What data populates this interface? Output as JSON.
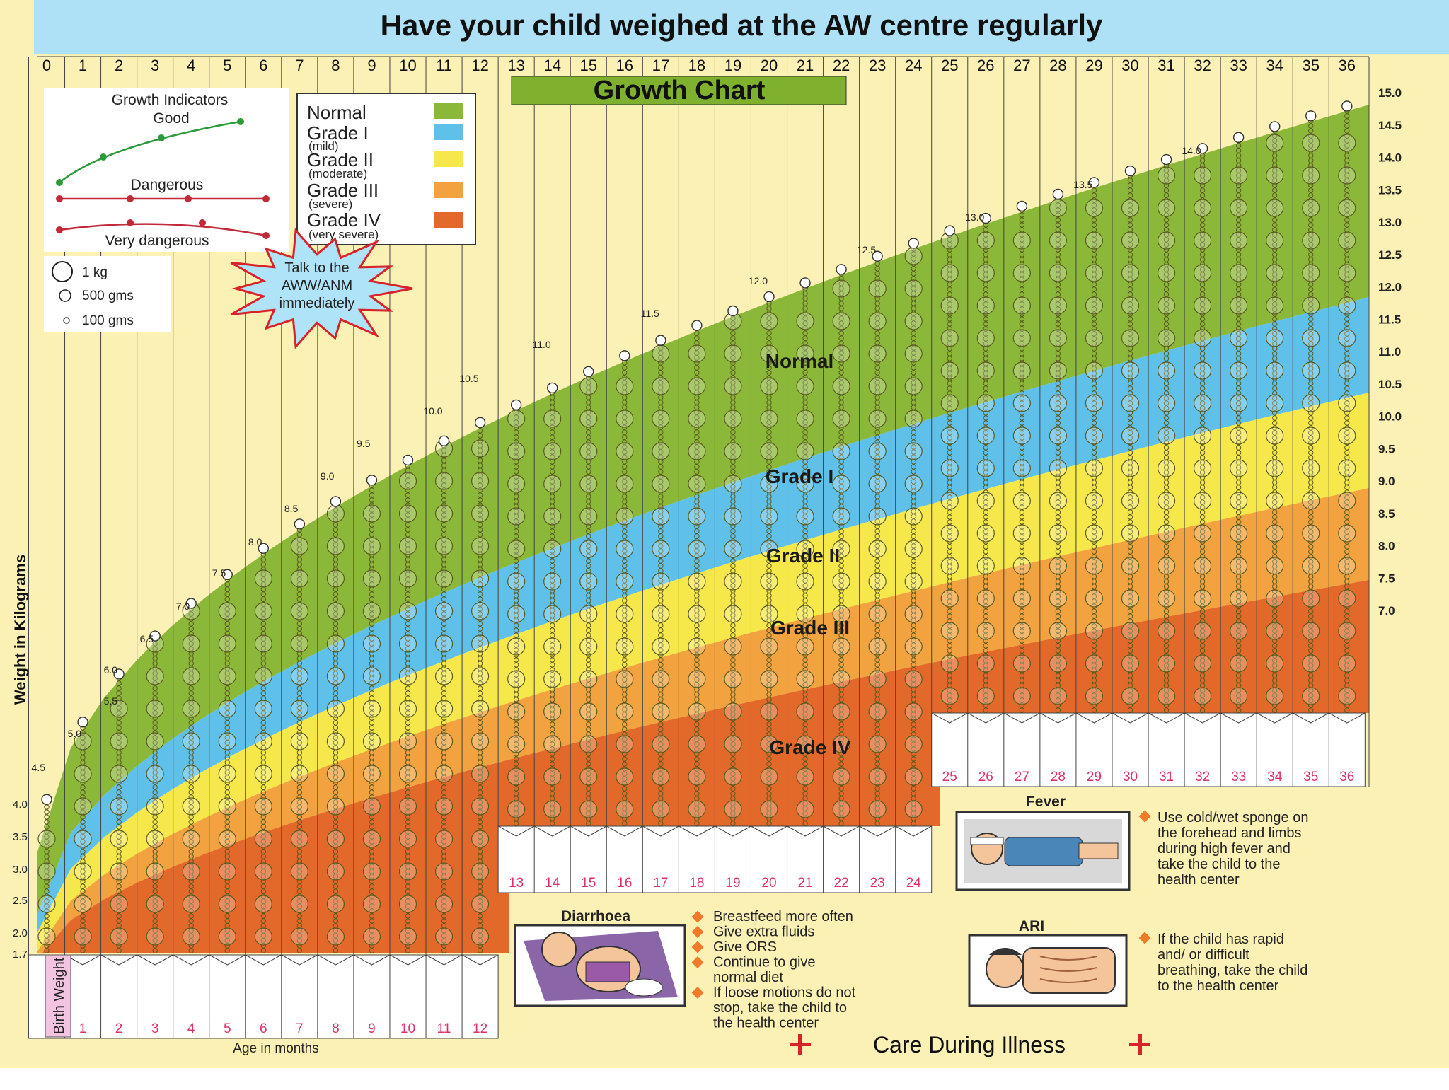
{
  "banner": "Have your child weighed at the AW centre regularly",
  "chart_title": "Growth Chart",
  "colors": {
    "banner_bg": "#aee0f6",
    "paper": "#fbf1b4",
    "normal": "#8cb83a",
    "grade1": "#5fc0ea",
    "grade2": "#f6e84a",
    "grade3": "#f2a23e",
    "grade4": "#e2692a",
    "title_bg": "#7fb02e",
    "red": "#d8232a",
    "pink": "#e0306a"
  },
  "legend": {
    "indicators_title": "Growth Indicators",
    "good": "Good",
    "dangerous": "Dangerous",
    "very_dangerous": "Very dangerous",
    "normal": "Normal",
    "grade1": "Grade I",
    "grade1_sub": "(mild)",
    "grade2": "Grade II",
    "grade2_sub": "(moderate)",
    "grade3": "Grade III",
    "grade3_sub": "(severe)",
    "grade4": "Grade IV",
    "grade4_sub": "(very severe)",
    "bead_1kg": "1 kg",
    "bead_500": "500 gms",
    "bead_100": "100 gms",
    "starburst": [
      "Talk to the",
      "AWW/ANM",
      "immediately"
    ]
  },
  "axis": {
    "y_label": "Weight in Kilograms",
    "x_label": "Age in months",
    "birth_weight": "Birth Weight"
  },
  "illness": {
    "title": "Care During Illness",
    "fever_title": "Fever",
    "fever_lines": [
      "Use cold/wet sponge on",
      "the forehead and limbs",
      "during high fever and",
      "take the child to the",
      "health center"
    ],
    "diarrhoea_title": "Diarrhoea",
    "diarrhoea_items": [
      [
        "Breastfeed more often"
      ],
      [
        "Give extra fluids"
      ],
      [
        "Give ORS"
      ],
      [
        "Continue to give",
        "normal diet"
      ],
      [
        "If loose motions do not",
        "stop, take the child to",
        "the health center"
      ]
    ],
    "ari_title": "ARI",
    "ari_lines": [
      "If the child has rapid",
      "and/ or difficult",
      "breathing, take the child",
      "to the health center"
    ]
  },
  "chart_data": {
    "type": "area",
    "title": "Growth Chart",
    "xlabel": "Age in months",
    "ylabel": "Weight in Kilograms",
    "x": [
      0,
      1,
      2,
      3,
      4,
      5,
      6,
      7,
      8,
      9,
      10,
      11,
      12,
      13,
      14,
      15,
      16,
      17,
      18,
      19,
      20,
      21,
      22,
      23,
      24,
      25,
      26,
      27,
      28,
      29,
      30,
      31,
      32,
      33,
      34,
      35,
      36
    ],
    "top_month_labels": [
      "0",
      "1",
      "2",
      "3",
      "4",
      "5",
      "6",
      "7",
      "8",
      "9",
      "10",
      "11",
      "12",
      "13",
      "14",
      "15",
      "16",
      "17",
      "18",
      "19",
      "20",
      "21",
      "22",
      "23",
      "24",
      "25",
      "26",
      "27",
      "28",
      "29",
      "30",
      "31",
      "32",
      "33",
      "34",
      "35",
      "36"
    ],
    "right_tick_labels": [
      "15.0",
      "14.5",
      "14.0",
      "13.5",
      "13.0",
      "12.5",
      "12.0",
      "11.5",
      "11.0",
      "10.5",
      "10.0",
      "9.5",
      "9.0",
      "8.5",
      "8.0",
      "7.5",
      "7.0"
    ],
    "left_tick_labels": [
      "4.0",
      "3.5",
      "3.0",
      "2.5",
      "2.0",
      "1.7"
    ],
    "bottom_month_labels": [
      "1",
      "2",
      "3",
      "4",
      "5",
      "6",
      "7",
      "8",
      "9",
      "10",
      "11",
      "12"
    ],
    "mid_month_labels": [
      "13",
      "14",
      "15",
      "16",
      "17",
      "18",
      "19",
      "20",
      "21",
      "22",
      "23",
      "24"
    ],
    "right_month_labels": [
      "25",
      "26",
      "27",
      "28",
      "29",
      "30",
      "31",
      "32",
      "33",
      "34",
      "35",
      "36"
    ],
    "ylim_left": [
      1.7,
      4.0
    ],
    "ylim_right": [
      7.0,
      15.0
    ],
    "column_peak_labels": [
      {
        "month": 0,
        "label": "4.5"
      },
      {
        "month": 1,
        "label": "5.0"
      },
      {
        "month": 2,
        "label": "5.5"
      },
      {
        "month": 2,
        "label": "6.0"
      },
      {
        "month": 3,
        "label": "6.5"
      },
      {
        "month": 4,
        "label": "7.0"
      },
      {
        "month": 5,
        "label": "7.5"
      },
      {
        "month": 6,
        "label": "8.0"
      },
      {
        "month": 7,
        "label": "8.5"
      },
      {
        "month": 8,
        "label": "9.0"
      },
      {
        "month": 9,
        "label": "9.5"
      },
      {
        "month": 11,
        "label": "10.0"
      },
      {
        "month": 12,
        "label": "10.5"
      },
      {
        "month": 14,
        "label": "11.0"
      },
      {
        "month": 17,
        "label": "11.5"
      },
      {
        "month": 20,
        "label": "12.0"
      },
      {
        "month": 23,
        "label": "12.5"
      },
      {
        "month": 26,
        "label": "13.0"
      },
      {
        "month": 29,
        "label": "13.5"
      },
      {
        "month": 32,
        "label": "14.0"
      }
    ],
    "zone_labels": [
      "Normal",
      "Grade I",
      "Grade II",
      "Grade III",
      "Grade IV"
    ],
    "legend_position": "top-left",
    "grid": true
  }
}
